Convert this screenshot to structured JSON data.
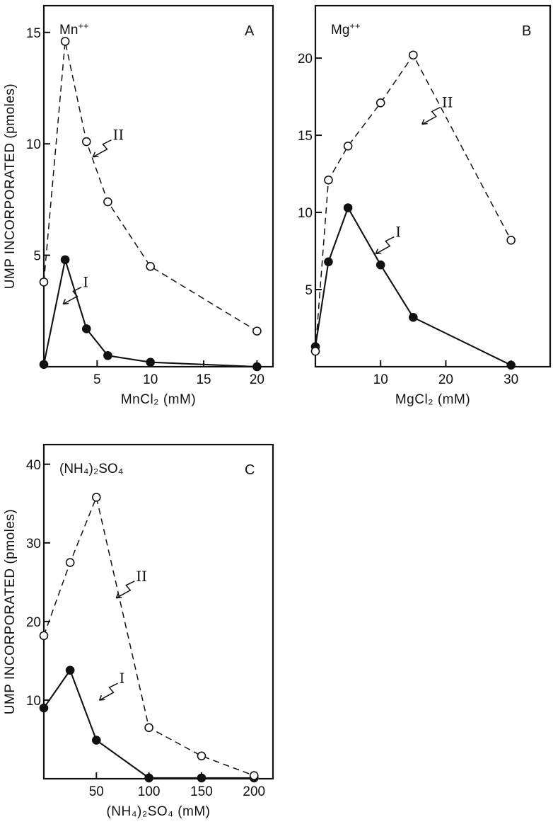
{
  "chart_data": [
    {
      "type": "line",
      "panel": "A",
      "title": "Mn++",
      "xlabel": "MnCl2 (mM)",
      "ylabel": "UMP INCORPORATED (pmoles)",
      "xlim": [
        0,
        21.5
      ],
      "ylim": [
        0,
        16.2
      ],
      "xticks": [
        5,
        10,
        15,
        20
      ],
      "yticks": [
        5,
        10,
        15
      ],
      "grid": false,
      "series": [
        {
          "name": "I",
          "style": "solid",
          "marker": "filled-circle",
          "points": [
            [
              0,
              0.1
            ],
            [
              2,
              4.8
            ],
            [
              4,
              1.7
            ],
            [
              6,
              0.5
            ],
            [
              10,
              0.2
            ],
            [
              20,
              0.0
            ]
          ],
          "label_at": [
            3.8,
            3.7
          ]
        },
        {
          "name": "II",
          "style": "dashed",
          "marker": "open-circle",
          "points": [
            [
              0,
              3.8
            ],
            [
              2,
              14.6
            ],
            [
              4,
              10.1
            ],
            [
              6,
              7.4
            ],
            [
              10,
              4.5
            ],
            [
              20,
              1.6
            ]
          ],
          "label_at": [
            6.6,
            10.3
          ]
        }
      ]
    },
    {
      "type": "line",
      "panel": "B",
      "title": "Mg++",
      "xlabel": "MgCl2 (mM)",
      "ylabel": "",
      "xlim": [
        0,
        36
      ],
      "ylim": [
        0,
        23.4
      ],
      "xticks": [
        10,
        20,
        30
      ],
      "yticks": [
        5,
        10,
        15,
        20
      ],
      "grid": false,
      "series": [
        {
          "name": "I",
          "style": "solid",
          "marker": "filled-circle",
          "points": [
            [
              0,
              1.3
            ],
            [
              2,
              6.8
            ],
            [
              5,
              10.3
            ],
            [
              10,
              6.6
            ],
            [
              15,
              3.2
            ],
            [
              30,
              0.1
            ]
          ],
          "label_at": [
            12.5,
            8.6
          ]
        },
        {
          "name": "II",
          "style": "dashed",
          "marker": "open-circle",
          "points": [
            [
              0,
              1.0
            ],
            [
              2,
              12.1
            ],
            [
              5,
              14.3
            ],
            [
              10,
              17.1
            ],
            [
              15,
              20.2
            ],
            [
              30,
              8.2
            ]
          ],
          "label_at": [
            19.6,
            17.0
          ]
        }
      ]
    },
    {
      "type": "line",
      "panel": "C",
      "title": "(NH4)2SO4",
      "xlabel": "(NH4)2SO4 (mM)",
      "ylabel": "UMP INCORPORATED (pmoles)",
      "xlim": [
        0,
        218
      ],
      "ylim": [
        0,
        42.5
      ],
      "xticks": [
        50,
        100,
        150,
        200
      ],
      "yticks": [
        10,
        20,
        30,
        40
      ],
      "grid": false,
      "series": [
        {
          "name": "I",
          "style": "solid",
          "marker": "filled-circle",
          "points": [
            [
              0,
              9.0
            ],
            [
              25,
              13.8
            ],
            [
              50,
              4.9
            ],
            [
              100,
              0.1
            ],
            [
              150,
              0.1
            ],
            [
              200,
              0.1
            ]
          ],
          "label_at": [
            73,
            12.5
          ]
        },
        {
          "name": "II",
          "style": "dashed",
          "marker": "open-circle",
          "points": [
            [
              0,
              18.2
            ],
            [
              25,
              27.5
            ],
            [
              50,
              35.8
            ],
            [
              100,
              6.5
            ],
            [
              150,
              2.9
            ],
            [
              200,
              0.4
            ]
          ],
          "label_at": [
            89,
            25.5
          ]
        }
      ]
    }
  ]
}
